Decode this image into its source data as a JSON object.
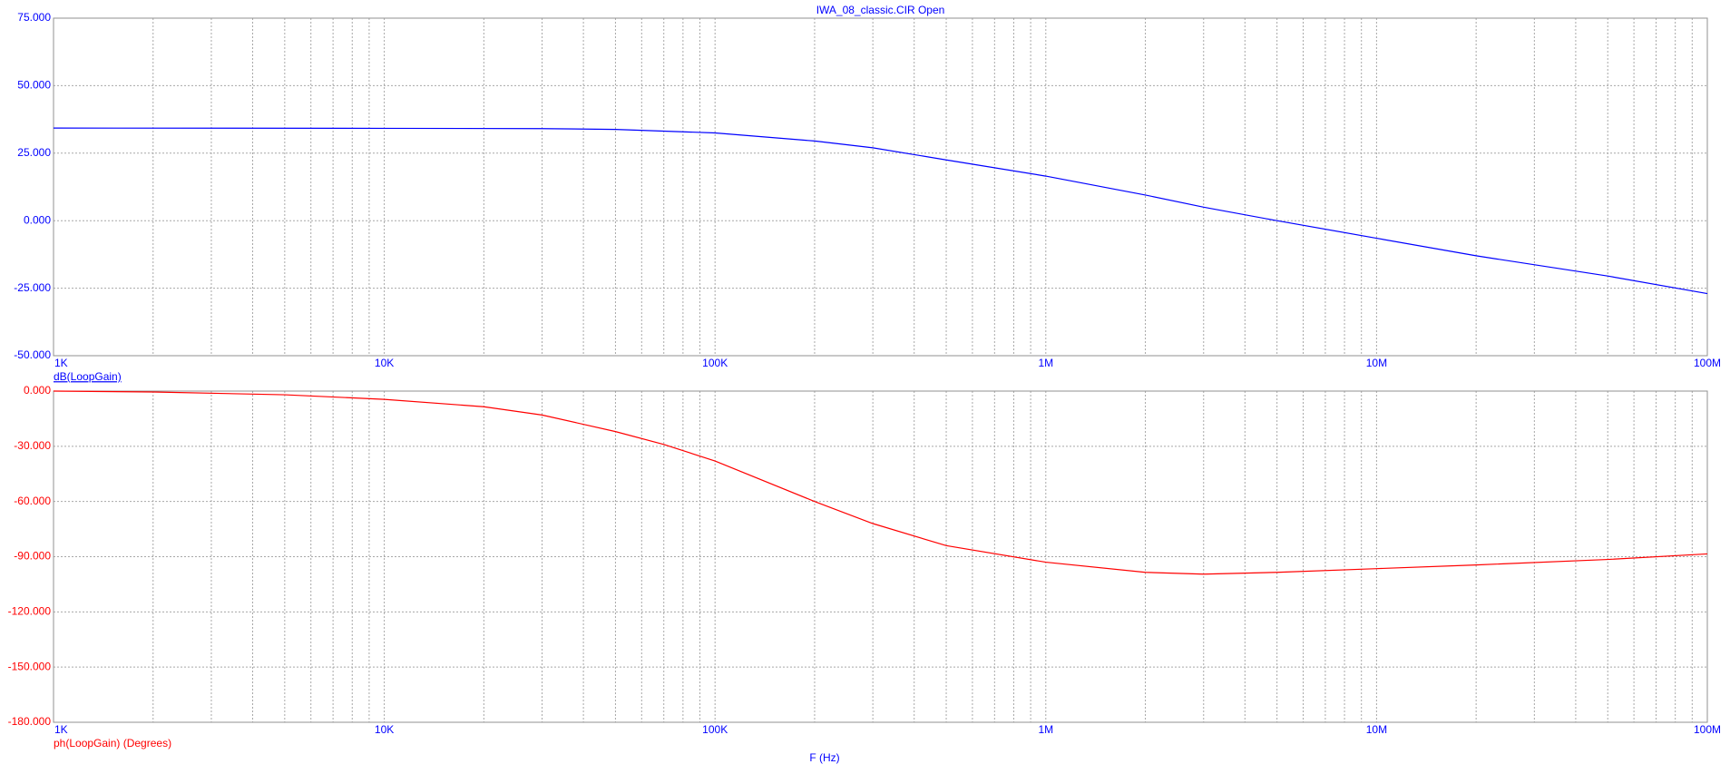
{
  "chart_data": [
    {
      "type": "line",
      "title": "IWA_08_classic.CIR Open",
      "xscale": "log",
      "grid": true,
      "x": [
        1000,
        10000,
        30000,
        50000,
        100000,
        200000,
        300000,
        500000,
        1000000,
        2000000,
        3000000,
        5000000,
        10000000,
        20000000,
        50000000,
        100000000
      ],
      "series": [
        {
          "name": "dB(LoopGain)",
          "color": "#0000ff",
          "values": [
            34.3,
            34.2,
            34.1,
            33.8,
            32.5,
            29.5,
            27,
            22.5,
            16.5,
            9.5,
            5,
            0,
            -6.5,
            -13,
            -20.5,
            -27
          ]
        }
      ],
      "xlim": [
        1000,
        100000000
      ],
      "xticks": [
        {
          "value": 1000,
          "label": "1K"
        },
        {
          "value": 10000,
          "label": "10K"
        },
        {
          "value": 100000,
          "label": "100K"
        },
        {
          "value": 1000000,
          "label": "1M"
        },
        {
          "value": 10000000,
          "label": "10M"
        },
        {
          "value": 100000000,
          "label": "100M"
        }
      ],
      "xminor": [
        2000,
        3000,
        4000,
        5000,
        6000,
        7000,
        8000,
        9000,
        20000,
        30000,
        40000,
        50000,
        60000,
        70000,
        80000,
        90000,
        200000,
        300000,
        400000,
        500000,
        600000,
        700000,
        800000,
        900000,
        2000000,
        3000000,
        4000000,
        5000000,
        6000000,
        7000000,
        8000000,
        9000000,
        20000000,
        30000000,
        40000000,
        50000000,
        60000000,
        70000000,
        80000000,
        90000000
      ],
      "ylim": [
        -50,
        75
      ],
      "yticks": [
        {
          "value": -50,
          "label": "-50.000"
        },
        {
          "value": -25,
          "label": "-25.000"
        },
        {
          "value": 0,
          "label": "0.000"
        },
        {
          "value": 25,
          "label": "25.000"
        },
        {
          "value": 50,
          "label": "50.000"
        },
        {
          "value": 75,
          "label": "75.000"
        }
      ]
    },
    {
      "type": "line",
      "xlabel": "F (Hz)",
      "xscale": "log",
      "grid": true,
      "x": [
        1000,
        2000,
        5000,
        10000,
        20000,
        30000,
        50000,
        70000,
        100000,
        200000,
        300000,
        500000,
        1000000,
        2000000,
        3000000,
        5000000,
        10000000,
        20000000,
        50000000,
        100000000
      ],
      "series": [
        {
          "name": "ph(LoopGain) (Degrees)",
          "color": "#ff0000",
          "values": [
            0,
            -0.5,
            -2,
            -4.5,
            -8.5,
            -13,
            -22,
            -29,
            -38,
            -60,
            -72,
            -84,
            -93,
            -98.5,
            -99.5,
            -98.5,
            -96.5,
            -94.5,
            -91.5,
            -88.5
          ]
        }
      ],
      "xlim": [
        1000,
        100000000
      ],
      "xticks": [
        {
          "value": 1000,
          "label": "1K"
        },
        {
          "value": 10000,
          "label": "10K"
        },
        {
          "value": 100000,
          "label": "100K"
        },
        {
          "value": 1000000,
          "label": "1M"
        },
        {
          "value": 10000000,
          "label": "10M"
        },
        {
          "value": 100000000,
          "label": "100M"
        }
      ],
      "xminor": [
        2000,
        3000,
        4000,
        5000,
        6000,
        7000,
        8000,
        9000,
        20000,
        30000,
        40000,
        50000,
        60000,
        70000,
        80000,
        90000,
        200000,
        300000,
        400000,
        500000,
        600000,
        700000,
        800000,
        900000,
        2000000,
        3000000,
        4000000,
        5000000,
        6000000,
        7000000,
        8000000,
        9000000,
        20000000,
        30000000,
        40000000,
        50000000,
        60000000,
        70000000,
        80000000,
        90000000
      ],
      "ylim": [
        -180,
        0
      ],
      "yticks": [
        {
          "value": -180,
          "label": "-180.000"
        },
        {
          "value": -150,
          "label": "-150.000"
        },
        {
          "value": -120,
          "label": "-120.000"
        },
        {
          "value": -90,
          "label": "-90.000"
        },
        {
          "value": -60,
          "label": "-60.000"
        },
        {
          "value": -30,
          "label": "-30.000"
        },
        {
          "value": 0,
          "label": "0.000"
        }
      ]
    }
  ]
}
